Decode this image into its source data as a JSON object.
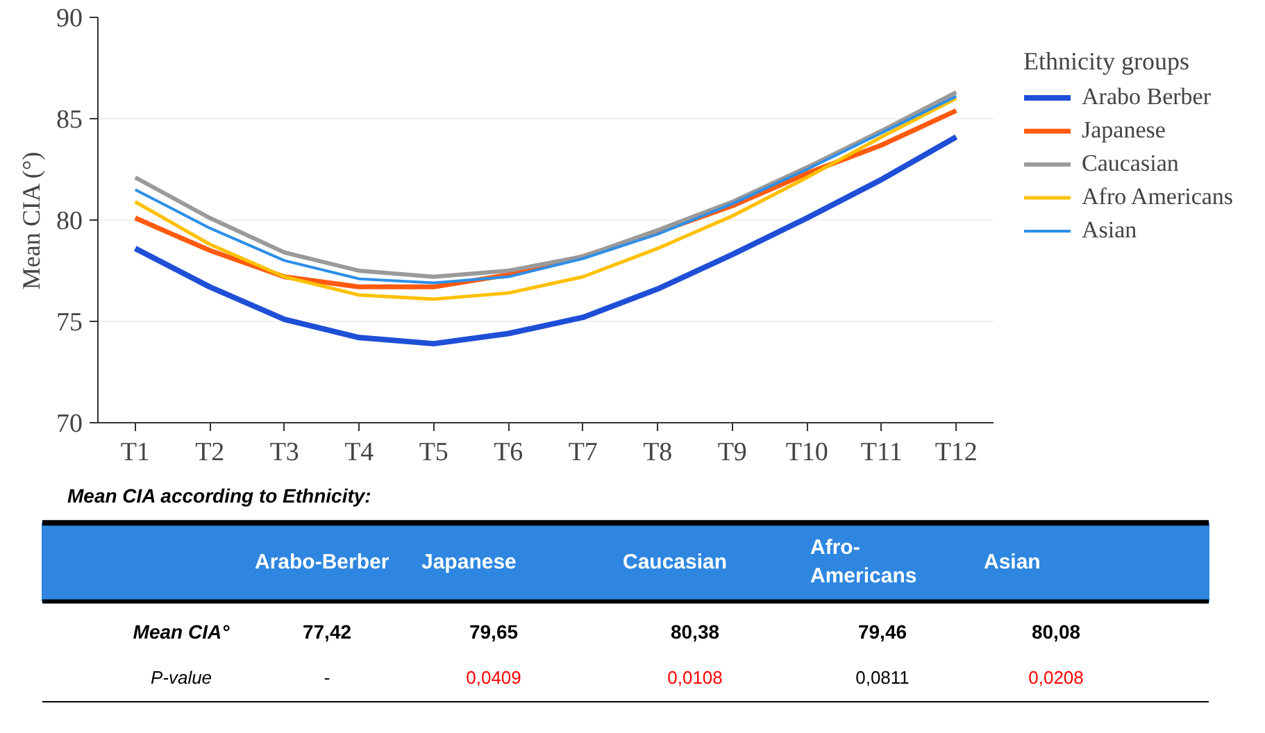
{
  "chart_data": [
    {
      "type": "line",
      "ylabel": "Mean CIA (°)",
      "legend_title": "Ethnicity groups",
      "categories": [
        "T1",
        "T2",
        "T3",
        "T4",
        "T5",
        "T6",
        "T7",
        "T8",
        "T9",
        "T10",
        "T11",
        "T12"
      ],
      "series": [
        {
          "name": "Arabo Berber",
          "color": "#1f4fd6",
          "values": [
            78.6,
            76.7,
            75.1,
            74.2,
            73.9,
            74.4,
            75.2,
            76.6,
            78.3,
            80.1,
            82.0,
            84.1
          ]
        },
        {
          "name": "Japanese",
          "color": "#ff5a0e",
          "values": [
            80.1,
            78.5,
            77.2,
            76.7,
            76.7,
            77.3,
            78.2,
            79.4,
            80.7,
            82.3,
            83.7,
            85.4
          ]
        },
        {
          "name": "Caucasian",
          "color": "#9a9a9a",
          "values": [
            82.1,
            80.1,
            78.4,
            77.5,
            77.2,
            77.5,
            78.2,
            79.5,
            80.9,
            82.6,
            84.4,
            86.3
          ]
        },
        {
          "name": "Afro Americans",
          "color": "#ffc000",
          "values": [
            80.9,
            78.8,
            77.2,
            76.3,
            76.1,
            76.4,
            77.2,
            78.6,
            80.2,
            82.1,
            84.1,
            86.0
          ]
        },
        {
          "name": "Asian",
          "color": "#2e8fe8",
          "values": [
            81.5,
            79.6,
            78.0,
            77.1,
            76.9,
            77.2,
            78.1,
            79.3,
            80.8,
            82.5,
            84.3,
            86.1
          ]
        }
      ],
      "ylim": [
        70,
        90
      ],
      "yticks": [
        70,
        75,
        80,
        85,
        90
      ],
      "grid": "y",
      "legend": "right",
      "line_style": "solid"
    },
    {
      "type": "other",
      "title": "Mean CIA according to Ethnicity:",
      "annotations": [
        "Arabo-Berber",
        "Japanese",
        "Caucasian",
        "Afro-\nAmericans",
        "Asian",
        "Mean CIA°",
        "77,42",
        "79,65",
        "80,38",
        "79,46",
        "80,08",
        "P-value",
        "-",
        "0,0409",
        "0,0108",
        "0,0811",
        "0,0208"
      ],
      "colors": [
        "#ffffff",
        "#ffffff",
        "#ffffff",
        "#ffffff",
        "#ffffff",
        "#000000",
        "#000000",
        "#000000",
        "#000000",
        "#000000",
        "#000000",
        "#000000",
        "#000000",
        "#ff0000",
        "#ff0000",
        "#000000",
        "#ff0000"
      ]
    }
  ]
}
